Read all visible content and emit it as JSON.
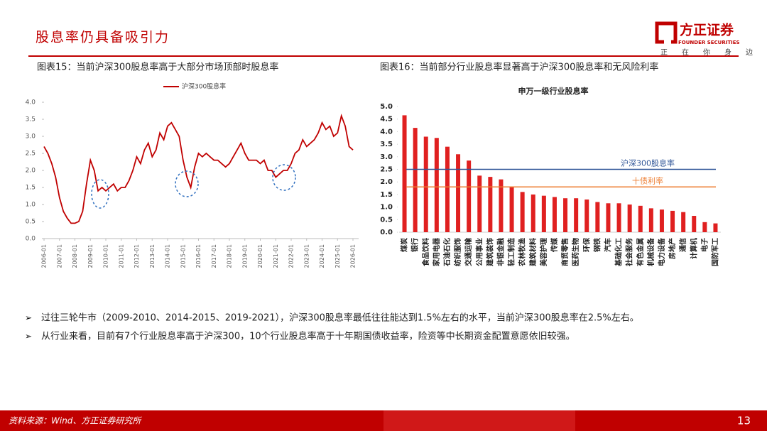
{
  "header": {
    "title": "股息率仍具备吸引力",
    "logo": "方正证券",
    "logo_en": "FOUNDER SECURITIES",
    "slogan": [
      "正",
      "在",
      "你",
      "身",
      "边"
    ]
  },
  "captions": [
    "图表15：当前沪深300股息率高于大部分市场顶部时股息率",
    "图表16：当前部分行业股息率显著高于沪深300股息率和无风险利率"
  ],
  "chart_data": [
    {
      "type": "line",
      "x": [
        "2006-01",
        "2006-04",
        "2006-07",
        "2006-10",
        "2007-01",
        "2007-04",
        "2007-07",
        "2007-10",
        "2008-01",
        "2008-04",
        "2008-07",
        "2008-10",
        "2009-01",
        "2009-04",
        "2009-07",
        "2009-10",
        "2010-01",
        "2010-04",
        "2010-07",
        "2010-10",
        "2011-01",
        "2011-04",
        "2011-07",
        "2011-10",
        "2012-01",
        "2012-04",
        "2012-07",
        "2012-10",
        "2013-01",
        "2013-04",
        "2013-07",
        "2013-10",
        "2014-01",
        "2014-04",
        "2014-07",
        "2014-10",
        "2015-01",
        "2015-04",
        "2015-07",
        "2015-10",
        "2016-01",
        "2016-04",
        "2016-07",
        "2016-10",
        "2017-01",
        "2017-04",
        "2017-07",
        "2017-10",
        "2018-01",
        "2018-04",
        "2018-07",
        "2018-10",
        "2019-01",
        "2019-04",
        "2019-07",
        "2019-10",
        "2020-01",
        "2020-04",
        "2020-07",
        "2020-10",
        "2021-01",
        "2021-04",
        "2021-07",
        "2021-10",
        "2022-01",
        "2022-04",
        "2022-07",
        "2022-10",
        "2023-01",
        "2023-04",
        "2023-07",
        "2023-10",
        "2024-01",
        "2024-04",
        "2024-07",
        "2024-10",
        "2025-01",
        "2025-04",
        "2025-07",
        "2025-10",
        "2026-01"
      ],
      "series": [
        {
          "name": "沪深300股息率",
          "color": "#c00000",
          "values": [
            2.7,
            2.5,
            2.2,
            1.8,
            1.2,
            0.8,
            0.6,
            0.45,
            0.45,
            0.5,
            0.8,
            1.6,
            2.3,
            2.0,
            1.4,
            1.5,
            1.4,
            1.5,
            1.6,
            1.4,
            1.5,
            1.5,
            1.7,
            2.0,
            2.4,
            2.2,
            2.6,
            2.8,
            2.4,
            2.6,
            3.1,
            2.9,
            3.3,
            3.4,
            3.2,
            3.0,
            2.3,
            1.8,
            1.5,
            2.1,
            2.5,
            2.4,
            2.5,
            2.4,
            2.3,
            2.3,
            2.2,
            2.1,
            2.2,
            2.4,
            2.6,
            2.8,
            2.5,
            2.3,
            2.3,
            2.3,
            2.2,
            2.3,
            2.0,
            2.0,
            1.8,
            1.9,
            2.0,
            2.0,
            2.2,
            2.5,
            2.6,
            2.9,
            2.7,
            2.8,
            2.9,
            3.1,
            3.4,
            3.2,
            3.3,
            3.0,
            3.1,
            3.6,
            3.3,
            2.7,
            2.6
          ]
        }
      ],
      "xticks": [
        "2006-01",
        "2007-01",
        "2008-01",
        "2009-01",
        "2010-01",
        "2011-01",
        "2012-01",
        "2013-01",
        "2014-01",
        "2015-01",
        "2016-01",
        "2017-01",
        "2018-01",
        "2019-01",
        "2020-01",
        "2021-01",
        "2022-01",
        "2023-01",
        "2024-01",
        "2025-01",
        "2026-01"
      ],
      "ylim": [
        0,
        4
      ],
      "yticks": [
        {
          "value": 0,
          "label": "0.0"
        },
        {
          "value": 0.5,
          "label": "0.5"
        },
        {
          "value": 1,
          "label": "1.0"
        },
        {
          "value": 1.5,
          "label": "1.5"
        },
        {
          "value": 2,
          "label": "2.0"
        },
        {
          "value": 2.5,
          "label": "2.5"
        },
        {
          "value": 3,
          "label": "3.0"
        },
        {
          "value": 3.5,
          "label": "3.5"
        },
        {
          "value": 4,
          "label": "4.0"
        }
      ],
      "legend": "top"
    },
    {
      "type": "bar",
      "title": "申万一级行业股息率",
      "color": "#e02020",
      "categories": [
        "煤炭",
        "银行",
        "食品饮料",
        "家用电器",
        "石油石化",
        "纺织服饰",
        "交通运输",
        "公用事业",
        "建筑装饰",
        "非银金融",
        "轻工制造",
        "农林牧渔",
        "建筑材料",
        "美容护理",
        "传媒",
        "商贸零售",
        "医药生物",
        "环保",
        "钢铁",
        "汽车",
        "基础化工",
        "社会服务",
        "有色金属",
        "机械设备",
        "电力设备",
        "房地产",
        "通信",
        "计算机",
        "电子",
        "国防军工"
      ],
      "values": [
        4.65,
        4.15,
        3.8,
        3.75,
        3.4,
        3.1,
        2.85,
        2.25,
        2.2,
        2.1,
        1.8,
        1.6,
        1.5,
        1.45,
        1.4,
        1.35,
        1.35,
        1.3,
        1.2,
        1.15,
        1.15,
        1.1,
        1.05,
        0.95,
        0.9,
        0.85,
        0.8,
        0.65,
        0.4,
        0.35
      ],
      "ylim": [
        0,
        5
      ],
      "yticks": [
        {
          "value": 0,
          "label": "0.0"
        },
        {
          "value": 0.5,
          "label": "0.5"
        },
        {
          "value": 1,
          "label": "1.0"
        },
        {
          "value": 1.5,
          "label": "1.5"
        },
        {
          "value": 2,
          "label": "2.0"
        },
        {
          "value": 2.5,
          "label": "2.5"
        },
        {
          "value": 3,
          "label": "3.0"
        },
        {
          "value": 3.5,
          "label": "3.5"
        },
        {
          "value": 4,
          "label": "4.0"
        },
        {
          "value": 4.5,
          "label": "4.5"
        },
        {
          "value": 5,
          "label": "5.0"
        }
      ],
      "reference_lines": [
        {
          "name": "沪深300股息率",
          "value": 2.5,
          "color": "#2f5597"
        },
        {
          "name": "十债利率",
          "value": 1.8,
          "color": "#ed7d31"
        }
      ]
    }
  ],
  "bullets": [
    "过往三轮牛市（2009-2010、2014-2015、2019-2021），沪深300股息率最低往往能达到1.5%左右的水平，当前沪深300股息率在2.5%左右。",
    "从行业来看，目前有7个行业股息率高于沪深300，10个行业股息率高于十年期国债收益率，险资等中长期资金配置意愿依旧较强。"
  ],
  "footer": {
    "source": "资料来源：Wind、方正证券研究所",
    "page": "13"
  }
}
